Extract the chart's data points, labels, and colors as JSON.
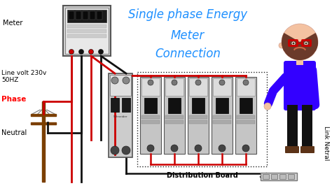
{
  "title_line1": "Single phase Energy",
  "title_line2": "Meter",
  "title_line3": "Connection",
  "title_color": "#1E90FF",
  "label_meter": "Meter",
  "label_line_volt": "Line volt 230v\n50HZ",
  "label_phase": "Phase",
  "label_phase_color": "#FF0000",
  "label_neutral": "Neutral",
  "label_dist": "Distribution Board",
  "label_link": "Link Netral",
  "wire_red": "#CC0000",
  "wire_black": "#111111",
  "pole_color": "#7B3F00",
  "meter_body": "#e8e8e8",
  "meter_display_bg": "#222222",
  "mcb_body": "#c8c8c8",
  "mcb_dark": "#222222",
  "bg_white": "#ffffff",
  "person_skin": "#F4C2A1",
  "person_hair": "#6B3A2A",
  "person_shirt": "#3300FF",
  "person_pants": "#111111",
  "person_glasses": "#CC0000"
}
